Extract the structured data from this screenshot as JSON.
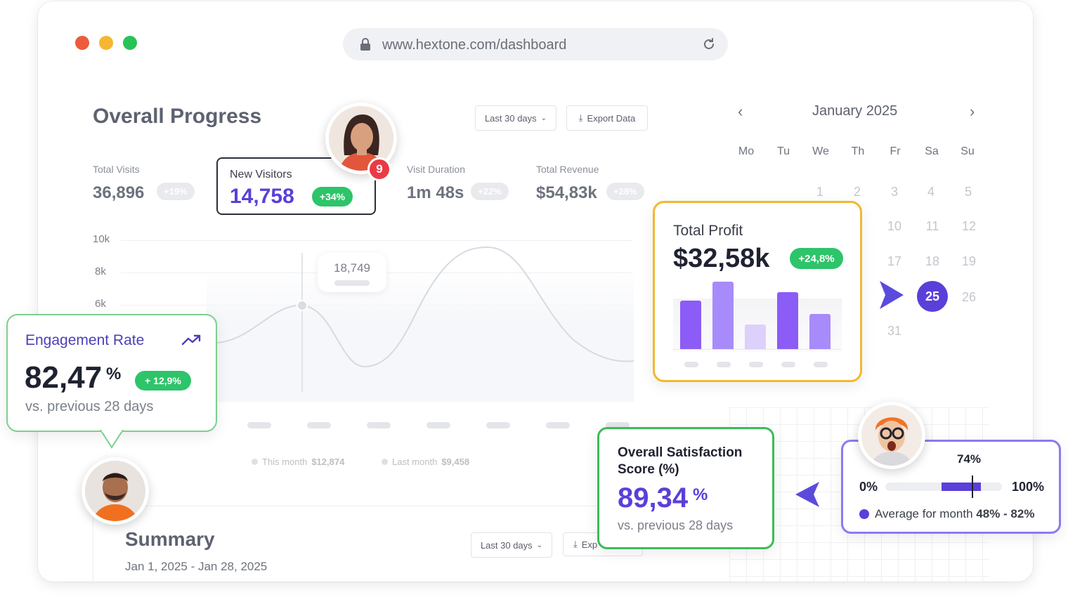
{
  "browser": {
    "url": "www.hextone.com/dashboard",
    "traffic_lights": [
      "#ee5b3a",
      "#f5b731",
      "#28c257"
    ]
  },
  "overall": {
    "title": "Overall Progress",
    "range_label": "Last 30 days",
    "export_label": "Export Data"
  },
  "stats": {
    "total_visits": {
      "label": "Total Visits",
      "value": "36,896",
      "change": "+19%"
    },
    "new_visitors": {
      "label": "New Visitors",
      "value": "14,758",
      "change": "+34%",
      "badge_count": "9"
    },
    "visit_duration": {
      "label": "Visit Duration",
      "value": "1m 48s",
      "change": "+22%"
    },
    "total_revenue": {
      "label": "Total Revenue",
      "value": "$54,83k",
      "change": "+28%"
    }
  },
  "chart_data": {
    "type": "line",
    "y_ticks": [
      "10k",
      "8k",
      "6k"
    ],
    "tooltip_value": "18,749",
    "legend": [
      {
        "label": "This month",
        "value": "$12,874"
      },
      {
        "label": "Last month",
        "value": "$9,458"
      }
    ]
  },
  "calendar": {
    "month": "January 2025",
    "weekdays": [
      "Mo",
      "Tu",
      "We",
      "Th",
      "Fr",
      "Sa",
      "Su"
    ],
    "row1": [
      "1",
      "2",
      "3",
      "4",
      "5"
    ],
    "row2": [
      "10",
      "11",
      "12"
    ],
    "row3": [
      "17",
      "18",
      "19"
    ],
    "row4": [
      "25",
      "26"
    ],
    "row5": [
      "31"
    ],
    "selected": "25"
  },
  "profit": {
    "title": "Total Profit",
    "value": "$32,58k",
    "change": "+24,8%",
    "bars": [
      0.72,
      1.0,
      0.36,
      0.84,
      0.52
    ],
    "bar_colors": [
      "#8b5cf6",
      "#a78bfa",
      "#ddd0fb",
      "#8b5cf6",
      "#a78bfa"
    ]
  },
  "engagement": {
    "title": "Engagement Rate",
    "value": "82,47",
    "percent": "%",
    "change": "+ 12,9%",
    "compare": "vs. previous 28 days"
  },
  "summary": {
    "title": "Summary",
    "dates": "Jan 1, 2025 - Jan 28, 2025",
    "range_label": "Last 30 days",
    "export_label": "Exp"
  },
  "satisfaction": {
    "title": "Overall Satisfaction Score (%)",
    "value": "89,34",
    "percent": "%",
    "compare": "vs. previous 28 days"
  },
  "range_card": {
    "marker_label": "74%",
    "min_label": "0%",
    "max_label": "100%",
    "marker_level": 0.74,
    "range_low": 0.48,
    "range_high": 0.82,
    "legend_prefix": "Average for month ",
    "legend_value": "48% - 82%"
  },
  "colors": {
    "accent_purple": "#5b3fd9",
    "green": "#2dc46a",
    "profit_border": "#f2b831",
    "engagement_border": "#7ccf8f",
    "satisfaction_border": "#3dbb5a",
    "range_border": "#8b7bf0"
  }
}
